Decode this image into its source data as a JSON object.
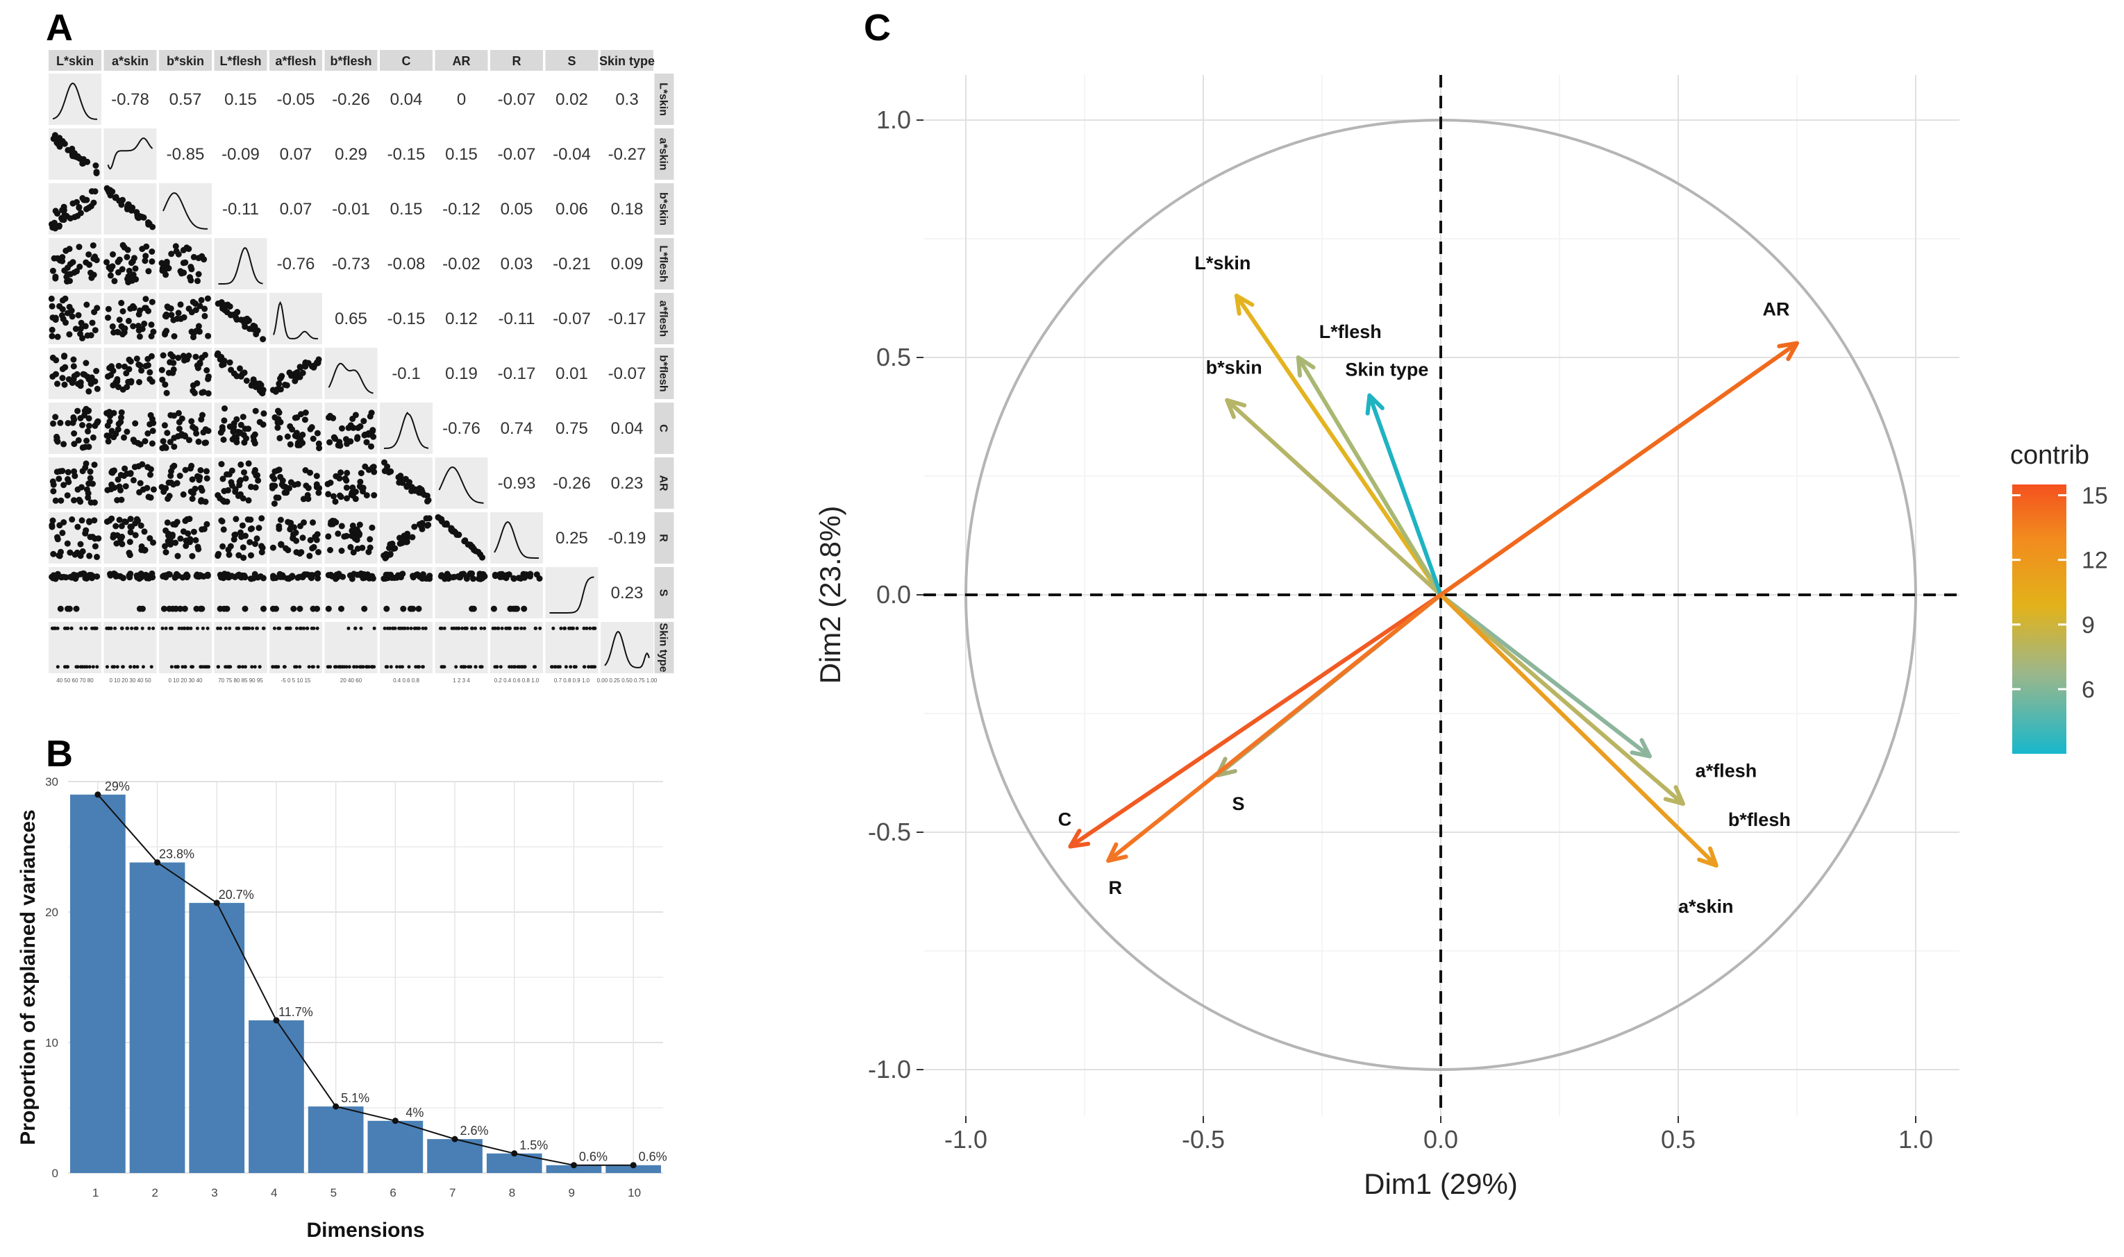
{
  "panels": {
    "a": {
      "letter": "A"
    },
    "b": {
      "letter": "B"
    },
    "c": {
      "letter": "C"
    }
  },
  "chart_data": [
    {
      "type": "scatter-matrix",
      "panel": "A",
      "variables": [
        "L*skin",
        "a*skin",
        "b*skin",
        "L*flesh",
        "a*flesh",
        "b*flesh",
        "C",
        "AR",
        "R",
        "S",
        "Skin type"
      ],
      "correlations": [
        [
          null,
          "-0.78",
          "0.57",
          "0.15",
          "-0.05",
          "-0.26",
          "0.04",
          "0",
          "-0.07",
          "0.02",
          "0.3"
        ],
        [
          null,
          null,
          "-0.85",
          "-0.09",
          "0.07",
          "0.29",
          "-0.15",
          "0.15",
          "-0.07",
          "-0.04",
          "-0.27"
        ],
        [
          null,
          null,
          null,
          "-0.11",
          "0.07",
          "-0.01",
          "0.15",
          "-0.12",
          "0.05",
          "0.06",
          "0.18"
        ],
        [
          null,
          null,
          null,
          null,
          "-0.76",
          "-0.73",
          "-0.08",
          "-0.02",
          "0.03",
          "-0.21",
          "0.09"
        ],
        [
          null,
          null,
          null,
          null,
          null,
          "0.65",
          "-0.15",
          "0.12",
          "-0.11",
          "-0.07",
          "-0.17"
        ],
        [
          null,
          null,
          null,
          null,
          null,
          null,
          "-0.1",
          "0.19",
          "-0.17",
          "0.01",
          "-0.07"
        ],
        [
          null,
          null,
          null,
          null,
          null,
          null,
          null,
          "-0.76",
          "0.74",
          "0.75",
          "0.04"
        ],
        [
          null,
          null,
          null,
          null,
          null,
          null,
          null,
          null,
          "-0.93",
          "-0.26",
          "0.23"
        ],
        [
          null,
          null,
          null,
          null,
          null,
          null,
          null,
          null,
          null,
          "0.25",
          "-0.19"
        ],
        [
          null,
          null,
          null,
          null,
          null,
          null,
          null,
          null,
          null,
          null,
          "0.23"
        ],
        [
          null,
          null,
          null,
          null,
          null,
          null,
          null,
          null,
          null,
          null,
          null
        ]
      ],
      "bottom_ticks": [
        "40 50 60 70 80",
        "0 10 20 30 40 50",
        "0 10 20 30 40",
        "70 75 80 85 90 95",
        "-5 0 5 10 15",
        "20 40 60",
        "0.4 0.6 0.8",
        "1 2 3 4",
        "0.2 0.4 0.6 0.8 1.0",
        "0.7 0.8 0.9 1.0",
        "0.00 0.25 0.50 0.75 1.00"
      ]
    },
    {
      "type": "bar",
      "panel": "B",
      "categories": [
        "1",
        "2",
        "3",
        "4",
        "5",
        "6",
        "7",
        "8",
        "9",
        "10"
      ],
      "values": [
        29,
        23.8,
        20.7,
        11.7,
        5.1,
        4,
        2.6,
        1.5,
        0.6,
        0.6
      ],
      "labels": [
        "29%",
        "23.8%",
        "20.7%",
        "11.7%",
        "5.1%",
        "4%",
        "2.6%",
        "1.5%",
        "0.6%",
        "0.6%"
      ],
      "xlabel": "Dimensions",
      "ylabel": "Proportion of explained variances",
      "ylim": [
        0,
        30
      ],
      "yticks": [
        0,
        10,
        20,
        30
      ],
      "color": "#4a7fb5"
    },
    {
      "type": "pca-correlation-circle",
      "panel": "C",
      "xlabel": "Dim1 (29%)",
      "ylabel": "Dim2 (23.8%)",
      "xlim": [
        -1.0,
        1.0
      ],
      "ylim": [
        -1.0,
        1.0
      ],
      "xticks": [
        "-1.0",
        "-0.5",
        "0.0",
        "0.5",
        "1.0"
      ],
      "yticks": [
        "-1.0",
        "-0.5",
        "0.0",
        "0.5",
        "1.0"
      ],
      "legend": {
        "title": "contrib",
        "ticks": [
          "6",
          "9",
          "12",
          "15"
        ],
        "range": [
          3,
          15.5
        ]
      },
      "vectors": [
        {
          "name": "L*skin",
          "x": -0.43,
          "y": 0.63,
          "contrib": 10.5,
          "color": "#e3b320"
        },
        {
          "name": "L*flesh",
          "x": -0.3,
          "y": 0.5,
          "contrib": 7.5,
          "color": "#a8b872"
        },
        {
          "name": "b*skin",
          "x": -0.45,
          "y": 0.41,
          "contrib": 8.5,
          "color": "#b6b466"
        },
        {
          "name": "Skin type",
          "x": -0.15,
          "y": 0.42,
          "contrib": 3.5,
          "color": "#1fb3c2"
        },
        {
          "name": "AR",
          "x": 0.75,
          "y": 0.53,
          "contrib": 14.5,
          "color": "#f06a1e"
        },
        {
          "name": "a*flesh",
          "x": 0.44,
          "y": -0.34,
          "contrib": 6.5,
          "color": "#8db59c"
        },
        {
          "name": "b*flesh",
          "x": 0.51,
          "y": -0.44,
          "contrib": 8.0,
          "color": "#b9b462"
        },
        {
          "name": "a*skin",
          "x": 0.58,
          "y": -0.57,
          "contrib": 11.5,
          "color": "#ea9d1e"
        },
        {
          "name": "S",
          "x": -0.47,
          "y": -0.38,
          "contrib": 8.0,
          "color": "#a8ad75"
        },
        {
          "name": "C",
          "x": -0.78,
          "y": -0.53,
          "contrib": 15.0,
          "color": "#f15a22"
        },
        {
          "name": "R",
          "x": -0.7,
          "y": -0.56,
          "contrib": 13.5,
          "color": "#f27524"
        }
      ]
    }
  ]
}
